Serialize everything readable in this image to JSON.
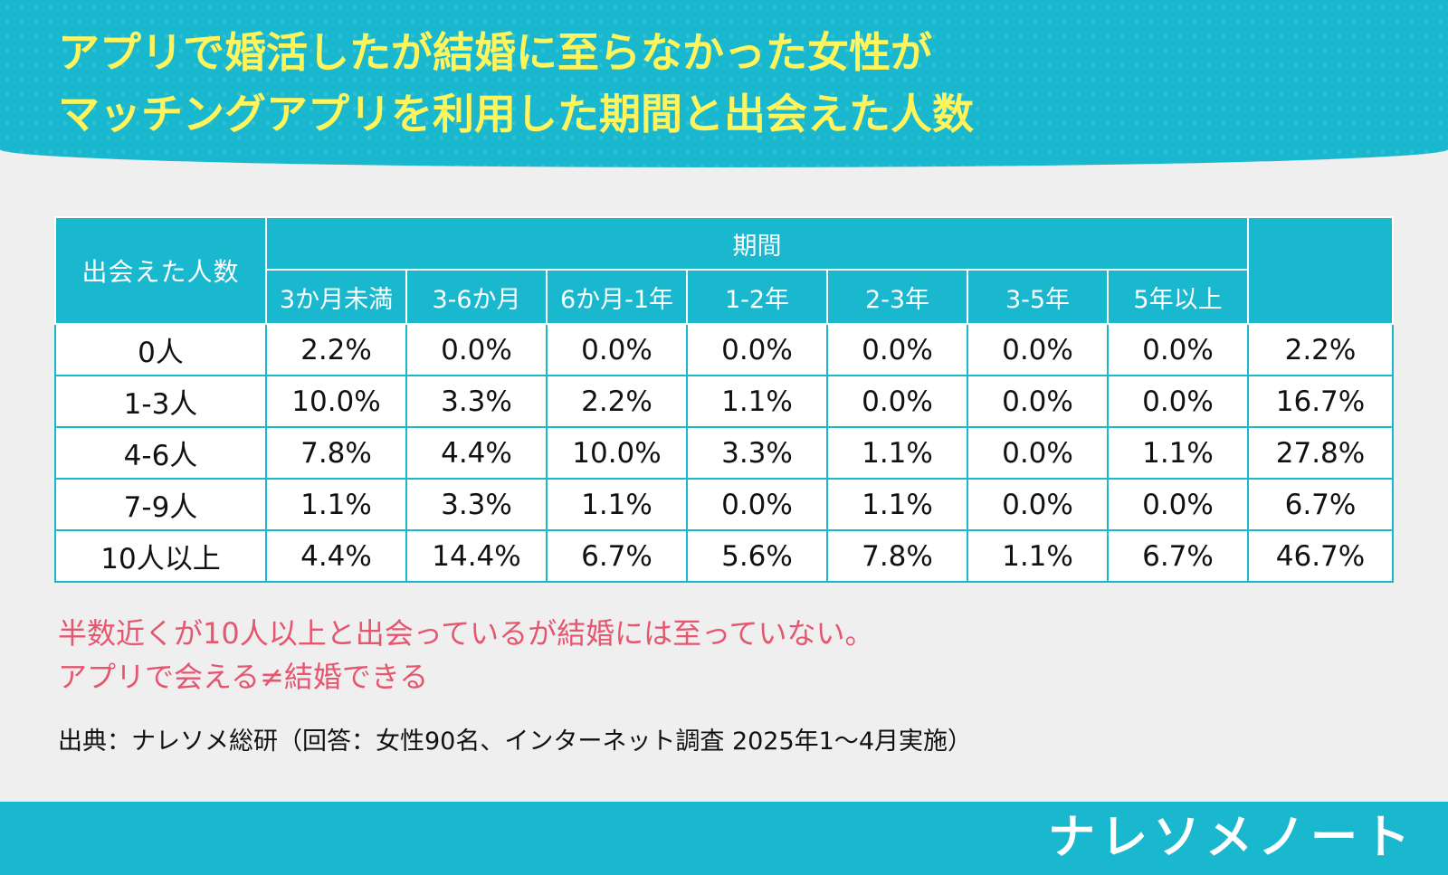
{
  "colors": {
    "accent": "#1ab8cf",
    "title": "#fff45c",
    "note": "#e5566f"
  },
  "title": {
    "line1": "アプリで婚活したが結婚に至らなかった女性が",
    "line2": "マッチングアプリを利用した期間と出会えた人数"
  },
  "chart_data": {
    "type": "table",
    "row_header_title": "出会えた人数",
    "column_group_title": "期間",
    "columns": [
      "3か月未満",
      "3-6か月",
      "6か月-1年",
      "1-2年",
      "2-3年",
      "3-5年",
      "5年以上"
    ],
    "total_column_label": "",
    "rows": [
      {
        "label": "0人",
        "values": [
          "2.2%",
          "0.0%",
          "0.0%",
          "0.0%",
          "0.0%",
          "0.0%",
          "0.0%"
        ],
        "total": "2.2%"
      },
      {
        "label": "1-3人",
        "values": [
          "10.0%",
          "3.3%",
          "2.2%",
          "1.1%",
          "0.0%",
          "0.0%",
          "0.0%"
        ],
        "total": "16.7%"
      },
      {
        "label": "4-6人",
        "values": [
          "7.8%",
          "4.4%",
          "10.0%",
          "3.3%",
          "1.1%",
          "0.0%",
          "1.1%"
        ],
        "total": "27.8%"
      },
      {
        "label": "7-9人",
        "values": [
          "1.1%",
          "3.3%",
          "1.1%",
          "0.0%",
          "1.1%",
          "0.0%",
          "0.0%"
        ],
        "total": "6.7%"
      },
      {
        "label": "10人以上",
        "values": [
          "4.4%",
          "14.4%",
          "6.7%",
          "5.6%",
          "7.8%",
          "1.1%",
          "6.7%"
        ],
        "total": "46.7%"
      }
    ]
  },
  "notes": {
    "line1": "半数近くが10人以上と出会っているが結婚には至っていない。",
    "line2": "アプリで会える≠結婚できる"
  },
  "source": "出典：ナレソメ総研（回答：女性90名、インターネット調査 2025年1～4月実施）",
  "brand": "ナレソメノート"
}
